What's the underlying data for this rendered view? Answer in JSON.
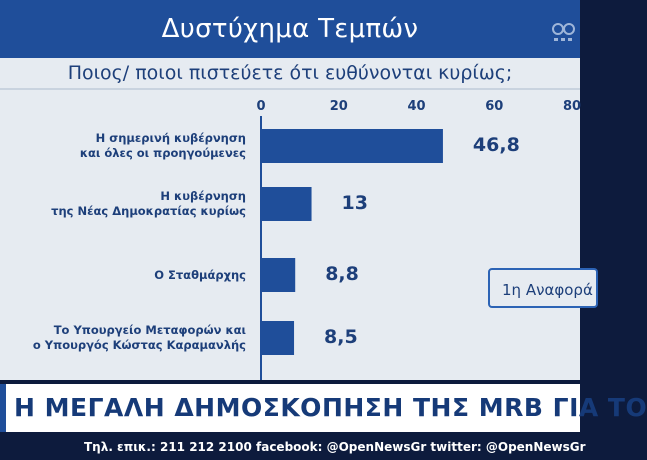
{
  "header": {
    "title": "Δυστύχημα Τεμπών"
  },
  "chart_data": {
    "type": "bar",
    "orientation": "horizontal",
    "title": "Ποιος/ ποιοι πιστεύετε ότι ευθύνονται κυρίως;",
    "categories": [
      "Η σημερινή κυβέρνηση\nκαι όλες οι προηγούμενες",
      "Η κυβέρνηση\nτης Νέας Δημοκρατίας κυρίως",
      "Ο Σταθμάρχης",
      "Το Υπουργείο Μεταφορών και\nο Υπουργός Κώστας Καραμανλής"
    ],
    "values": [
      46.8,
      13,
      8.8,
      8.5
    ],
    "value_labels": [
      "46,8",
      "13",
      "8,8",
      "8,5"
    ],
    "xlim": [
      0,
      80
    ],
    "ticks": [
      "0",
      "20",
      "40",
      "60",
      "80"
    ],
    "tick_values": [
      0,
      20,
      40,
      60,
      80
    ],
    "grid": false,
    "colors": {
      "bar": "#1f4e9a",
      "text": "#1d3f7a",
      "panel": "#e6ebf1"
    }
  },
  "badge": {
    "text": "1η Αναφορά"
  },
  "headline": {
    "text": "Η ΜΕΓΑΛΗ ΔΗΜΟΣΚΟΠΗΣΗ ΤΗΣ MRB ΓΙΑ ΤΟ"
  },
  "ticker": {
    "text": "Τηλ. επικ.: 211 212 2100 facebook: @OpenNewsGr twitter: @OpenNewsGr"
  }
}
